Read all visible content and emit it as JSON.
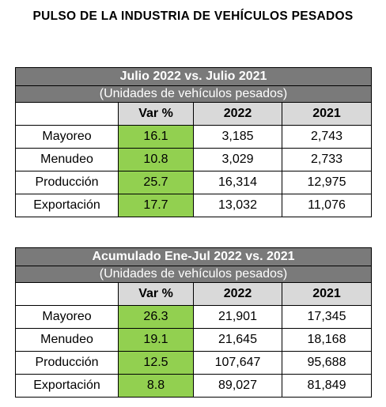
{
  "title": "PULSO DE LA INDUSTRIA DE VEHÍCULOS PESADOS",
  "colors": {
    "header_bg": "#7a7a7a",
    "col_header_bg": "#d9d9d9",
    "var_bg": "#92d050"
  },
  "tables": [
    {
      "heading": "Julio 2022 vs. Julio 2021",
      "subheading": "(Unidades de vehículos pesados)",
      "columns": [
        "Var %",
        "2022",
        "2021"
      ],
      "rows": [
        {
          "label": "Mayoreo",
          "var": "16.1",
          "y2022": "3,185",
          "y2021": "2,743"
        },
        {
          "label": "Menudeo",
          "var": "10.8",
          "y2022": "3,029",
          "y2021": "2,733"
        },
        {
          "label": "Producción",
          "var": "25.7",
          "y2022": "16,314",
          "y2021": "12,975"
        },
        {
          "label": "Exportación",
          "var": "17.7",
          "y2022": "13,032",
          "y2021": "11,076"
        }
      ]
    },
    {
      "heading": "Acumulado Ene-Jul 2022 vs. 2021",
      "subheading": "(Unidades de vehículos pesados)",
      "columns": [
        "Var %",
        "2022",
        "2021"
      ],
      "rows": [
        {
          "label": "Mayoreo",
          "var": "26.3",
          "y2022": "21,901",
          "y2021": "17,345"
        },
        {
          "label": "Menudeo",
          "var": "19.1",
          "y2022": "21,645",
          "y2021": "18,168"
        },
        {
          "label": "Producción",
          "var": "12.5",
          "y2022": "107,647",
          "y2021": "95,688"
        },
        {
          "label": "Exportación",
          "var": "8.8",
          "y2022": "89,027",
          "y2021": "81,849"
        }
      ]
    }
  ]
}
